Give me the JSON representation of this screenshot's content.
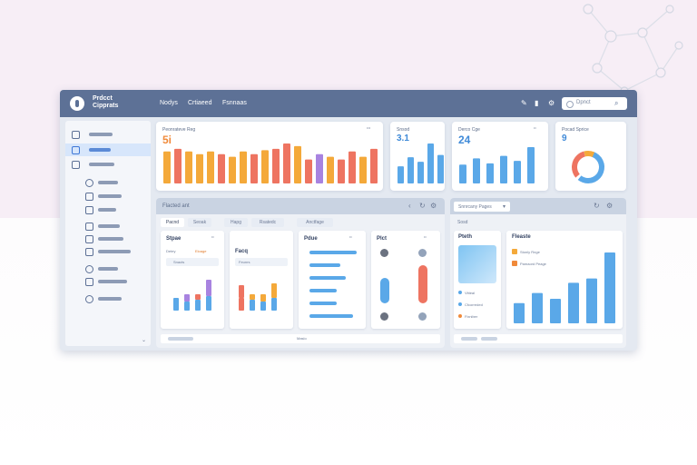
{
  "app": {
    "brand_line1": "Prdcct",
    "brand_line2": "Cipprats"
  },
  "nav": {
    "items": [
      "Nodys",
      "Crtiaeed",
      "Fsnnaas"
    ]
  },
  "search": {
    "placeholder": "Dpnct"
  },
  "cards": {
    "revenue": {
      "title": "Peonrateve Reg",
      "value": "5i"
    },
    "kpi2": {
      "title": "Snsod",
      "value": "3.1"
    },
    "kpi3": {
      "title": "Derco Cge",
      "value": "24"
    },
    "donut": {
      "title": "Pocad Sprice",
      "value": "9"
    }
  },
  "panel_left": {
    "title": "Flacted ant",
    "tabs": [
      "Pacnd",
      "Seoak",
      "Hapg",
      "Rsatedc",
      "Anctfage"
    ],
    "cards": [
      {
        "title": "Stpae",
        "sub1": "Detey",
        "sub2": "Eloage",
        "filter": "Snacts"
      },
      {
        "title": "Facq",
        "filter": "Feunrs"
      },
      {
        "title": "Pdue"
      },
      {
        "title": "Plct"
      }
    ],
    "footer": "Maslo"
  },
  "panel_right": {
    "dropdown": "Snnrcany Pages",
    "subtitle": "Sosd",
    "card_title": "Pteth",
    "rows": [
      "Vitteal",
      "Cfcorreded",
      "Fixniber"
    ],
    "chart_title": "Fleaste",
    "legend": [
      "Stonly Rnge",
      "Pamaord Peage"
    ]
  },
  "colors": {
    "header": "#5d7196",
    "orange": "#f4a93a",
    "red": "#ee7461",
    "purple": "#a883e0",
    "blue": "#5aa8e8"
  },
  "chart_data": {
    "type": "bar",
    "series": [
      {
        "values": [
          24,
          26,
          24,
          22,
          24,
          22,
          20,
          24,
          22,
          25,
          26,
          30,
          28,
          18,
          22,
          20,
          18,
          24,
          20,
          26
        ]
      },
      {
        "values": [
          30,
          46,
          38,
          70,
          50
        ]
      },
      {
        "values": [
          30,
          40,
          32,
          44,
          36,
          58
        ]
      },
      {
        "values": [
          28,
          42,
          34,
          56,
          62,
          98
        ]
      }
    ]
  }
}
